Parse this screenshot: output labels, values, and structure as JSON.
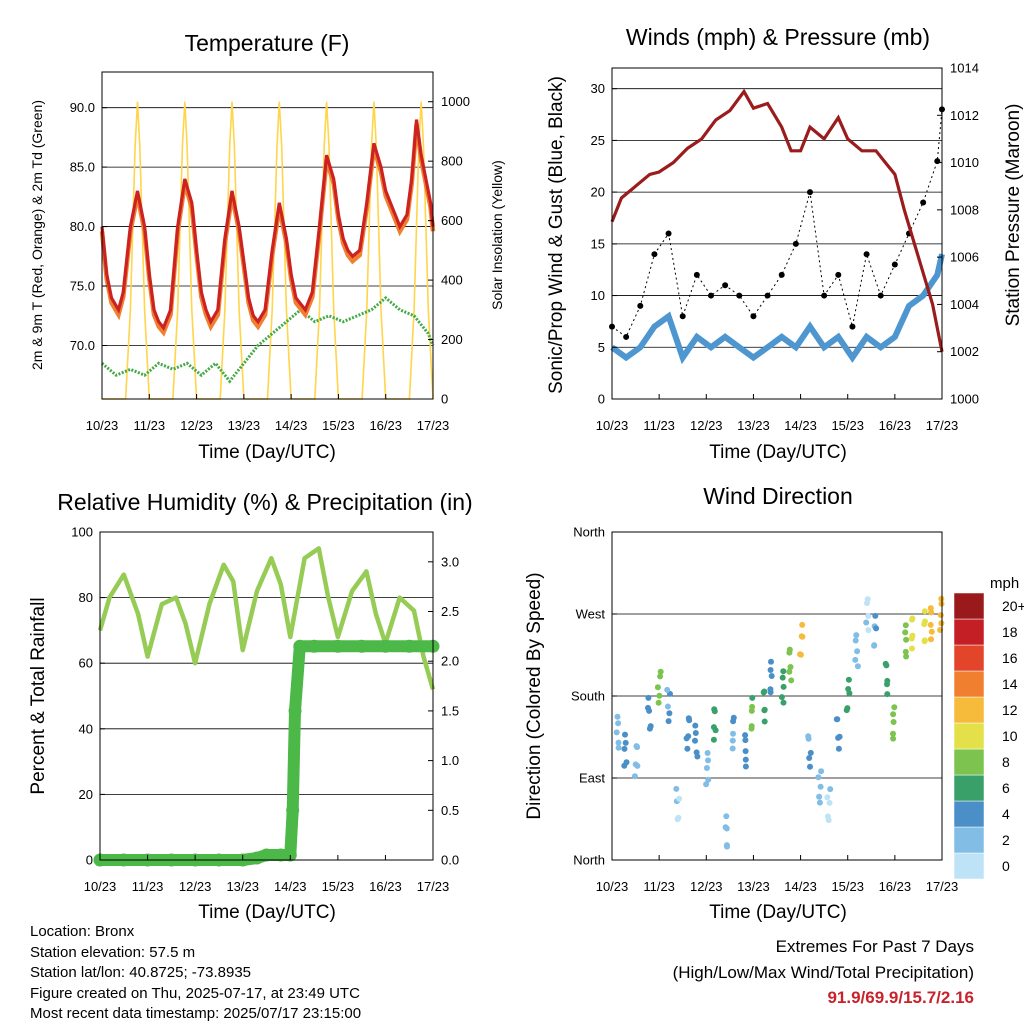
{
  "colors": {
    "temp_2m": "#cc2222",
    "temp_9m": "#f08030",
    "dewpoint": "#44aa44",
    "solar": "#ffd54a",
    "wind": "#4d96d0",
    "gust": "#000000",
    "pressure": "#9a1c1c",
    "rh": "#96cc55",
    "precip": "#4cb848"
  },
  "chart_data": [
    {
      "type": "line",
      "title": "Temperature (F)",
      "xlabel": "Time (Day/UTC)",
      "ylabel": "2m & 9m T (Red, Orange) & 2m Td (Green)",
      "y2label": "Solar Insolation (Yellow)",
      "xtick_labels": [
        "10/23",
        "11/23",
        "12/23",
        "13/23",
        "14/23",
        "15/23",
        "16/23",
        "17/23"
      ],
      "xlim": [
        0,
        7
      ],
      "ylim": [
        65.5,
        93
      ],
      "y2lim": [
        0,
        1100
      ],
      "yticks": [
        "70.0",
        "75.0",
        "80.0",
        "85.0",
        "90.0"
      ],
      "y2ticks": [
        "0",
        "200",
        "400",
        "600",
        "800",
        "1000"
      ],
      "grid": true,
      "series": [
        {
          "name": "2m T",
          "x": [
            0,
            0.1,
            0.2,
            0.35,
            0.45,
            0.6,
            0.75,
            0.9,
            1.0,
            1.1,
            1.2,
            1.3,
            1.45,
            1.6,
            1.75,
            1.9,
            2.0,
            2.1,
            2.2,
            2.3,
            2.45,
            2.6,
            2.75,
            2.9,
            3.0,
            3.1,
            3.2,
            3.3,
            3.45,
            3.6,
            3.75,
            3.9,
            4.0,
            4.1,
            4.2,
            4.3,
            4.45,
            4.6,
            4.75,
            4.9,
            5.0,
            5.1,
            5.2,
            5.3,
            5.45,
            5.6,
            5.75,
            5.9,
            6.0,
            6.1,
            6.2,
            6.3,
            6.45,
            6.55,
            6.65,
            6.75,
            6.85,
            6.95,
            7.0
          ],
          "values": [
            80,
            76,
            74,
            73,
            74.5,
            80,
            83,
            80,
            76,
            73,
            72,
            71.5,
            73,
            80,
            84,
            82,
            78,
            74.5,
            73,
            72,
            73,
            79,
            83,
            80,
            77,
            74,
            72.5,
            72,
            73,
            78,
            82,
            79,
            76,
            74,
            73.5,
            73,
            74.5,
            80,
            86,
            84,
            81,
            79,
            78,
            77.5,
            78,
            82,
            87,
            85,
            83,
            82,
            81,
            80,
            81,
            84,
            89,
            86,
            84,
            82,
            80
          ]
        },
        {
          "name": "9m T",
          "x": [
            0,
            0.1,
            0.2,
            0.35,
            0.45,
            0.6,
            0.75,
            0.9,
            1.0,
            1.1,
            1.2,
            1.3,
            1.45,
            1.6,
            1.75,
            1.9,
            2.0,
            2.1,
            2.2,
            2.3,
            2.45,
            2.6,
            2.75,
            2.9,
            3.0,
            3.1,
            3.2,
            3.3,
            3.45,
            3.6,
            3.75,
            3.9,
            4.0,
            4.1,
            4.2,
            4.3,
            4.45,
            4.6,
            4.75,
            4.9,
            5.0,
            5.1,
            5.2,
            5.3,
            5.45,
            5.6,
            5.75,
            5.9,
            6.0,
            6.1,
            6.2,
            6.3,
            6.45,
            6.55,
            6.65,
            6.75,
            6.85,
            6.95,
            7.0
          ],
          "values": [
            79.6,
            75.6,
            73.6,
            72.6,
            74.1,
            79.6,
            82.6,
            79.6,
            75.6,
            72.6,
            71.6,
            71.1,
            72.6,
            79.6,
            83.6,
            81.6,
            77.6,
            74.1,
            72.6,
            71.6,
            72.6,
            78.6,
            82.6,
            79.6,
            76.6,
            73.6,
            72.1,
            71.6,
            72.6,
            77.6,
            81.6,
            78.6,
            75.6,
            73.6,
            73.1,
            72.6,
            74.1,
            79.6,
            85.6,
            83.6,
            80.6,
            78.6,
            77.6,
            77.1,
            77.6,
            81.6,
            86.6,
            84.6,
            82.6,
            81.6,
            80.6,
            79.6,
            80.6,
            83.6,
            88.6,
            85.6,
            83.6,
            81.6,
            79.6
          ]
        },
        {
          "name": "2m Td",
          "x": [
            0,
            0.3,
            0.6,
            0.9,
            1.2,
            1.5,
            1.8,
            2.1,
            2.4,
            2.7,
            3.0,
            3.3,
            3.6,
            3.9,
            4.2,
            4.5,
            4.8,
            5.1,
            5.4,
            5.7,
            6.0,
            6.3,
            6.6,
            6.9,
            7.0
          ],
          "values": [
            68.5,
            67.5,
            68,
            67.5,
            68.5,
            68,
            68.5,
            67.5,
            68.5,
            67,
            68.5,
            70,
            71,
            72,
            73,
            72,
            72.5,
            72,
            72.5,
            73,
            74,
            73,
            72.5,
            71,
            70
          ]
        },
        {
          "name": "Solar",
          "x": [
            0,
            0.5,
            0.6,
            0.7,
            0.75,
            0.8,
            0.9,
            1.0,
            1.5,
            1.6,
            1.7,
            1.75,
            1.8,
            1.9,
            2.0,
            2.5,
            2.6,
            2.7,
            2.75,
            2.8,
            2.9,
            3.0,
            3.5,
            3.6,
            3.7,
            3.75,
            3.8,
            3.9,
            4.0,
            4.5,
            4.6,
            4.7,
            4.75,
            4.8,
            4.9,
            5.0,
            5.5,
            5.6,
            5.7,
            5.75,
            5.8,
            5.9,
            6.0,
            6.5,
            6.6,
            6.7,
            6.75,
            6.8,
            6.9,
            7.0
          ],
          "values": [
            0,
            0,
            300,
            850,
            1000,
            850,
            300,
            0,
            0,
            300,
            850,
            1000,
            850,
            300,
            0,
            0,
            300,
            850,
            1000,
            850,
            300,
            0,
            0,
            300,
            850,
            1000,
            850,
            300,
            0,
            0,
            300,
            850,
            1000,
            850,
            300,
            0,
            0,
            300,
            850,
            1000,
            850,
            300,
            0,
            0,
            300,
            850,
            1000,
            850,
            300,
            0
          ]
        }
      ]
    },
    {
      "type": "scatter",
      "title": "Winds (mph) & Pressure (mb)",
      "xlabel": "Time (Day/UTC)",
      "ylabel": "Sonic/Prop Wind & Gust (Blue, Black)",
      "y2label": "Station Pressure (Maroon)",
      "xtick_labels": [
        "10/23",
        "11/23",
        "12/23",
        "13/23",
        "14/23",
        "15/23",
        "16/23",
        "17/23"
      ],
      "xlim": [
        0,
        7
      ],
      "ylim": [
        0,
        32
      ],
      "y2lim": [
        1000,
        1014
      ],
      "yticks": [
        "0",
        "5",
        "10",
        "15",
        "20",
        "25",
        "30"
      ],
      "y2ticks": [
        "1000",
        "1002",
        "1004",
        "1006",
        "1008",
        "1010",
        "1012",
        "1014"
      ],
      "grid": true,
      "series": [
        {
          "name": "Wind",
          "x": [
            0,
            0.3,
            0.6,
            0.9,
            1.2,
            1.5,
            1.8,
            2.1,
            2.4,
            2.7,
            3.0,
            3.3,
            3.6,
            3.9,
            4.2,
            4.5,
            4.8,
            5.1,
            5.4,
            5.7,
            6.0,
            6.3,
            6.6,
            6.9,
            7.0
          ],
          "values": [
            5,
            4,
            5,
            7,
            8,
            4,
            6,
            5,
            6,
            5,
            4,
            5,
            6,
            5,
            7,
            5,
            6,
            4,
            6,
            5,
            6,
            9,
            10,
            12,
            14
          ]
        },
        {
          "name": "Gust",
          "x": [
            0,
            0.3,
            0.6,
            0.9,
            1.2,
            1.5,
            1.8,
            2.1,
            2.4,
            2.7,
            3.0,
            3.3,
            3.6,
            3.9,
            4.2,
            4.5,
            4.8,
            5.1,
            5.4,
            5.7,
            6.0,
            6.3,
            6.6,
            6.9,
            7.0
          ],
          "values": [
            7,
            6,
            9,
            14,
            16,
            8,
            12,
            10,
            11,
            10,
            8,
            10,
            12,
            15,
            20,
            10,
            12,
            7,
            14,
            10,
            13,
            16,
            19,
            23,
            28
          ]
        },
        {
          "name": "Pressure",
          "x": [
            0,
            0.2,
            0.5,
            0.8,
            1.0,
            1.3,
            1.6,
            1.9,
            2.2,
            2.5,
            2.8,
            3.0,
            3.3,
            3.6,
            3.8,
            4.0,
            4.2,
            4.5,
            4.8,
            5.0,
            5.3,
            5.6,
            5.8,
            6.0,
            6.2,
            6.5,
            6.8,
            7.0
          ],
          "values": [
            1007.5,
            1008.5,
            1009,
            1009.5,
            1009.6,
            1010,
            1010.6,
            1011,
            1011.8,
            1012.2,
            1013,
            1012.3,
            1012.5,
            1011.5,
            1010.5,
            1010.5,
            1011.5,
            1011,
            1011.9,
            1011,
            1010.5,
            1010.5,
            1010,
            1009.5,
            1008,
            1006,
            1004,
            1002
          ]
        }
      ]
    },
    {
      "type": "line",
      "title": "Relative Humidity (%) & Precipitation (in)",
      "xlabel": "Time (Day/UTC)",
      "ylabel": "Percent & Total Rainfall",
      "xtick_labels": [
        "10/23",
        "11/23",
        "12/23",
        "13/23",
        "14/23",
        "15/23",
        "16/23",
        "17/23"
      ],
      "xlim": [
        0,
        7
      ],
      "ylim": [
        0,
        100
      ],
      "y2lim": [
        0,
        3.3
      ],
      "yticks": [
        "0",
        "20",
        "40",
        "60",
        "80",
        "100"
      ],
      "y2ticks": [
        "0.0",
        "0.5",
        "1.0",
        "1.5",
        "2.0",
        "2.5",
        "3.0"
      ],
      "grid": true,
      "series": [
        {
          "name": "RH",
          "x": [
            0,
            0.2,
            0.5,
            0.8,
            1.0,
            1.3,
            1.6,
            1.8,
            2.0,
            2.3,
            2.6,
            2.8,
            3.0,
            3.3,
            3.6,
            3.8,
            4.0,
            4.3,
            4.6,
            4.8,
            5.0,
            5.3,
            5.6,
            5.8,
            6.0,
            6.3,
            6.6,
            6.8,
            7.0
          ],
          "values": [
            70,
            80,
            87,
            75,
            62,
            78,
            80,
            72,
            60,
            78,
            90,
            85,
            64,
            82,
            92,
            84,
            68,
            92,
            95,
            80,
            68,
            82,
            88,
            75,
            66,
            80,
            76,
            62,
            52
          ]
        },
        {
          "name": "Precip",
          "x": [
            0,
            0.5,
            1.0,
            1.5,
            2.0,
            2.5,
            3.0,
            3.3,
            3.5,
            3.8,
            4.0,
            4.05,
            4.1,
            4.2,
            4.5,
            5.0,
            5.5,
            6.0,
            6.5,
            7.0
          ],
          "values": [
            0,
            0,
            0,
            0,
            0,
            0,
            0,
            0.02,
            0.05,
            0.05,
            0.05,
            0.5,
            1.5,
            2.15,
            2.15,
            2.15,
            2.15,
            2.15,
            2.15,
            2.15
          ]
        }
      ]
    },
    {
      "type": "scatter",
      "title": "Wind Direction",
      "xlabel": "Time (Day/UTC)",
      "ylabel": "Direction (Colored By Speed)",
      "xtick_labels": [
        "10/23",
        "11/23",
        "12/23",
        "13/23",
        "14/23",
        "15/23",
        "16/23",
        "17/23"
      ],
      "xlim": [
        0,
        7
      ],
      "ylim": [
        0,
        360
      ],
      "yticks": [
        "North",
        "East",
        "South",
        "West",
        "North"
      ],
      "colorbar_unit": "mph",
      "colorbar_labels": [
        "0",
        "2",
        "4",
        "6",
        "8",
        "10",
        "12",
        "14",
        "16",
        "18",
        "20+"
      ],
      "colorbar_colors": [
        "#bfe3f6",
        "#82bde6",
        "#4a8fc8",
        "#3aa06a",
        "#7cc34f",
        "#e3e04a",
        "#f6bb3a",
        "#f0802f",
        "#e2452a",
        "#c51f26",
        "#9a1a1c"
      ],
      "series": [
        {
          "name": "Direction",
          "x": [
            0.1,
            0.3,
            0.5,
            0.8,
            1.0,
            1.2,
            1.4,
            1.6,
            1.8,
            2.0,
            2.2,
            2.4,
            2.6,
            2.8,
            3.0,
            3.2,
            3.4,
            3.6,
            3.8,
            4.0,
            4.2,
            4.4,
            4.6,
            4.8,
            5.0,
            5.2,
            5.4,
            5.6,
            5.8,
            6.0,
            6.2,
            6.4,
            6.6,
            6.8,
            6.95
          ],
          "values": [
            140,
            120,
            110,
            160,
            190,
            170,
            60,
            140,
            130,
            100,
            150,
            30,
            140,
            120,
            160,
            170,
            200,
            190,
            215,
            240,
            120,
            80,
            60,
            140,
            180,
            230,
            270,
            250,
            200,
            150,
            240,
            250,
            255,
            260,
            270
          ],
          "speeds": [
            3,
            4,
            3,
            5,
            9,
            4,
            2,
            5,
            6,
            4,
            8,
            3,
            4,
            5,
            8,
            6,
            4,
            7,
            9,
            13,
            4,
            3,
            2,
            5,
            8,
            3,
            2,
            4,
            7,
            9,
            8,
            10,
            11,
            12,
            13
          ]
        }
      ]
    }
  ],
  "info": {
    "location": "Location: Bronx",
    "elevation": "Station elevation: 57.5 m",
    "latlon": "Station lat/lon: 40.8725; -73.8935",
    "created": "Figure created on Thu, 2025-07-17, at 23:49 UTC",
    "recent": "Most recent data timestamp: 2025/07/17 23:15:00"
  },
  "extremes": {
    "title": "Extremes For Past 7 Days",
    "subtitle": "(High/Low/Max Wind/Total Precipitation)",
    "values": "91.9/69.9/15.7/2.16"
  }
}
